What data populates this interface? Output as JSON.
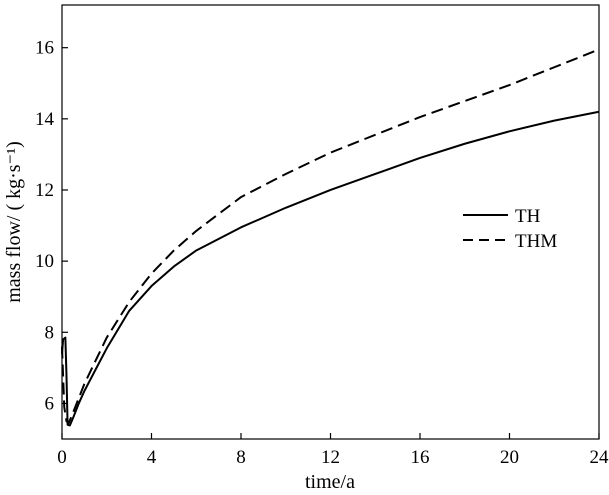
{
  "chart_data": {
    "type": "line",
    "title": "",
    "xlabel": "time/a",
    "ylabel": "mass flow/ ( kg·s⁻¹)",
    "xlim": [
      0,
      24
    ],
    "ylim": [
      5,
      17.2
    ],
    "xticks": [
      0,
      4,
      8,
      12,
      16,
      20,
      24
    ],
    "yticks": [
      6,
      8,
      10,
      12,
      14,
      16
    ],
    "grid": false,
    "legend_position": "right-middle",
    "series": [
      {
        "name": "TH",
        "style": "solid",
        "color": "#000000",
        "x": [
          0,
          0.05,
          0.15,
          0.2,
          0.25,
          0.35,
          0.5,
          0.75,
          1,
          1.5,
          2,
          3,
          4,
          5,
          6,
          8,
          10,
          12,
          14,
          16,
          18,
          20,
          22,
          24
        ],
        "y": [
          7.4,
          7.8,
          7.85,
          6.8,
          5.4,
          5.38,
          5.6,
          6.0,
          6.35,
          6.95,
          7.55,
          8.6,
          9.3,
          9.85,
          10.3,
          10.95,
          11.5,
          12.0,
          12.45,
          12.9,
          13.3,
          13.65,
          13.95,
          14.2
        ]
      },
      {
        "name": "THM",
        "style": "dashed",
        "color": "#000000",
        "x": [
          0,
          0.1,
          0.2,
          0.3,
          0.5,
          0.75,
          1,
          1.5,
          2,
          3,
          4,
          5,
          6,
          8,
          10,
          12,
          14,
          16,
          18,
          20,
          22,
          24
        ],
        "y": [
          7.6,
          5.9,
          5.5,
          5.45,
          5.75,
          6.15,
          6.55,
          7.2,
          7.85,
          8.85,
          9.65,
          10.3,
          10.85,
          11.8,
          12.45,
          13.05,
          13.55,
          14.05,
          14.5,
          14.95,
          15.45,
          15.95
        ]
      }
    ]
  }
}
